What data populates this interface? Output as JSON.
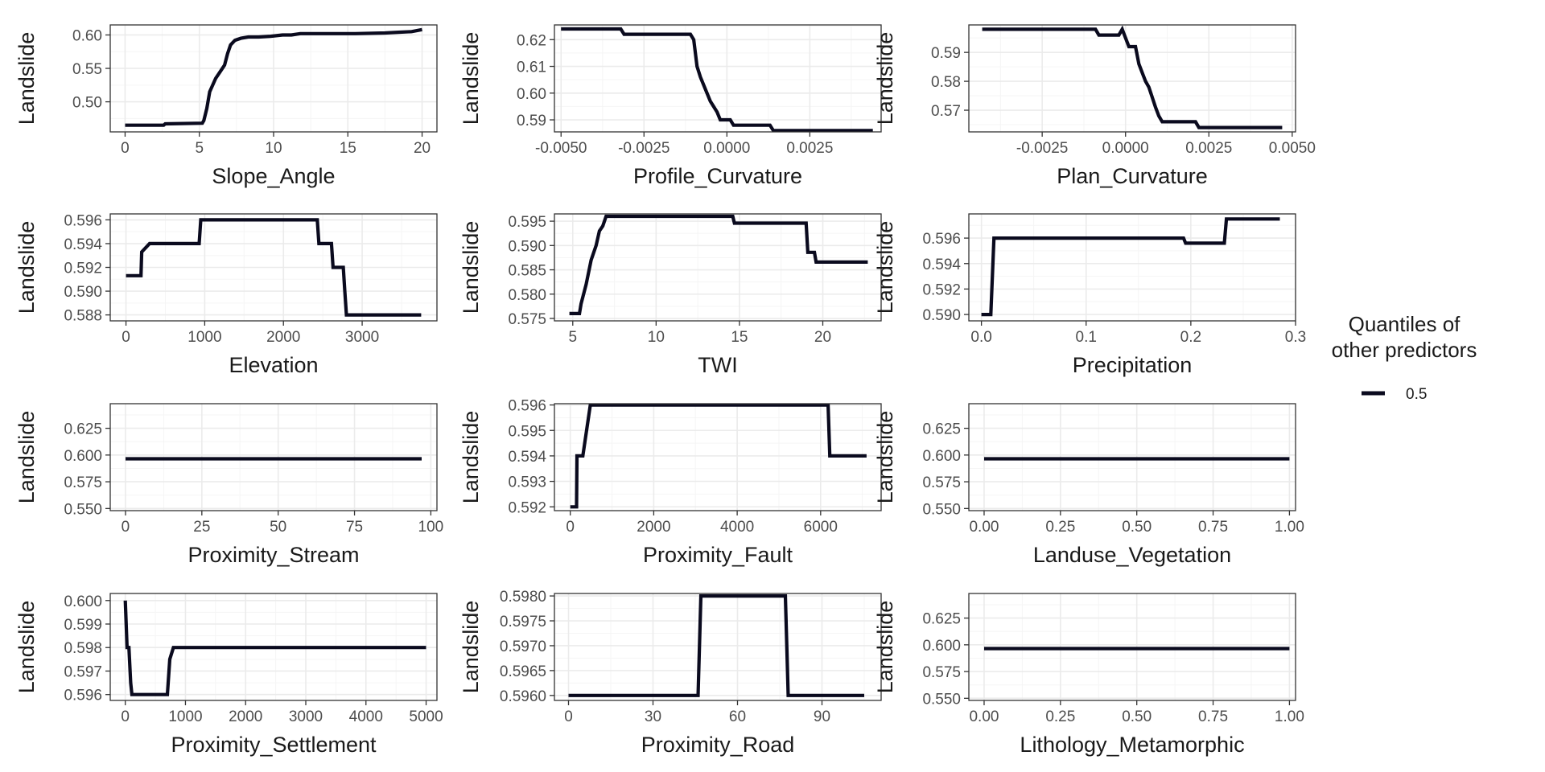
{
  "legend": {
    "title_lines": [
      "Quantiles of",
      "other predictors"
    ],
    "entries": [
      {
        "label": "0.5",
        "color": "#0a0a1e"
      }
    ]
  },
  "colors": {
    "line": "#0a0a1e",
    "grid_major": "#ebebeb",
    "grid_minor": "#f5f5f5",
    "border": "#333333",
    "tick_text": "#4d4d4d"
  },
  "chart_data": [
    {
      "type": "line",
      "xlabel": "Slope_Angle",
      "ylabel": "Landslide",
      "xlim": [
        -1,
        21
      ],
      "ylim": [
        0.455,
        0.615
      ],
      "xticks": [
        0,
        5,
        10,
        15,
        20
      ],
      "xtick_labels": [
        "0",
        "5",
        "10",
        "15",
        "20"
      ],
      "yticks": [
        0.5,
        0.55,
        0.6
      ],
      "ytick_labels": [
        "0.50",
        "0.55",
        "0.60"
      ],
      "series": [
        {
          "name": "0.5",
          "x": [
            0,
            2.6,
            2.7,
            5.2,
            5.3,
            5.5,
            5.7,
            5.9,
            6.1,
            6.4,
            6.7,
            6.9,
            7.1,
            7.4,
            7.8,
            8.3,
            9.0,
            9.8,
            10.6,
            11.2,
            11.8,
            15.5,
            17.5,
            18.4,
            19.3,
            20
          ],
          "y": [
            0.465,
            0.465,
            0.467,
            0.468,
            0.472,
            0.49,
            0.515,
            0.525,
            0.535,
            0.545,
            0.555,
            0.572,
            0.585,
            0.592,
            0.595,
            0.597,
            0.597,
            0.598,
            0.6,
            0.6,
            0.602,
            0.602,
            0.603,
            0.604,
            0.605,
            0.608
          ]
        }
      ]
    },
    {
      "type": "line",
      "xlabel": "Profile_Curvature",
      "ylabel": "Landslide",
      "xlim": [
        -0.0052,
        0.00465
      ],
      "ylim": [
        0.5855,
        0.6255
      ],
      "xticks": [
        -0.005,
        -0.0025,
        0,
        0.0025
      ],
      "xtick_labels": [
        "-0.0050",
        "-0.0025",
        "0.0000",
        "0.0025"
      ],
      "yticks": [
        0.59,
        0.6,
        0.61,
        0.62
      ],
      "ytick_labels": [
        "0.59",
        "0.60",
        "0.61",
        "0.62"
      ],
      "series": [
        {
          "name": "0.5",
          "x": [
            -0.005,
            -0.0032,
            -0.0031,
            -0.0011,
            -0.001,
            -0.0009,
            -0.0008,
            -0.0007,
            -0.0006,
            -0.0005,
            -0.0004,
            -0.0003,
            -0.0002,
            0.0001,
            0.0002,
            0.0013,
            0.0014,
            0.0044
          ],
          "y": [
            0.624,
            0.624,
            0.622,
            0.622,
            0.62,
            0.61,
            0.606,
            0.603,
            0.6,
            0.597,
            0.595,
            0.593,
            0.59,
            0.59,
            0.588,
            0.588,
            0.586,
            0.586
          ]
        }
      ]
    },
    {
      "type": "line",
      "xlabel": "Plan_Curvature",
      "ylabel": "Landslide",
      "xlim": [
        -0.0047,
        0.0051
      ],
      "ylim": [
        0.5625,
        0.5995
      ],
      "xticks": [
        -0.0025,
        0,
        0.0025,
        0.005
      ],
      "xtick_labels": [
        "-0.0025",
        "0.0000",
        "0.0025",
        "0.0050"
      ],
      "yticks": [
        0.57,
        0.58,
        0.59
      ],
      "ytick_labels": [
        "0.57",
        "0.58",
        "0.59"
      ],
      "series": [
        {
          "name": "0.5",
          "x": [
            -0.0043,
            -0.0009,
            -0.0008,
            -0.0002,
            -0.0001,
            0.0001,
            0.0003,
            0.0004,
            0.0005,
            0.0006,
            0.0007,
            0.0009,
            0.001,
            0.0011,
            0.0021,
            0.0022,
            0.0047
          ],
          "y": [
            0.598,
            0.598,
            0.596,
            0.596,
            0.598,
            0.592,
            0.592,
            0.586,
            0.583,
            0.58,
            0.578,
            0.571,
            0.568,
            0.566,
            0.566,
            0.564,
            0.564
          ]
        }
      ]
    },
    {
      "type": "line",
      "xlabel": "Elevation",
      "ylabel": "Landslide",
      "xlim": [
        -200,
        3950
      ],
      "ylim": [
        0.5875,
        0.5965
      ],
      "xticks": [
        0,
        1000,
        2000,
        3000
      ],
      "xtick_labels": [
        "0",
        "1000",
        "2000",
        "3000"
      ],
      "yticks": [
        0.588,
        0.59,
        0.592,
        0.594,
        0.596
      ],
      "ytick_labels": [
        "0.588",
        "0.590",
        "0.592",
        "0.594",
        "0.596"
      ],
      "series": [
        {
          "name": "0.5",
          "x": [
            0,
            190,
            200,
            300,
            930,
            950,
            2430,
            2450,
            2610,
            2630,
            2760,
            2780,
            2800,
            3750
          ],
          "y": [
            0.5913,
            0.5913,
            0.5933,
            0.594,
            0.594,
            0.596,
            0.596,
            0.594,
            0.594,
            0.592,
            0.592,
            0.59,
            0.588,
            0.588
          ]
        }
      ]
    },
    {
      "type": "line",
      "xlabel": "TWI",
      "ylabel": "Landslide",
      "xlim": [
        3.9,
        23.5
      ],
      "ylim": [
        0.5745,
        0.5965
      ],
      "xticks": [
        5,
        10,
        15,
        20
      ],
      "xtick_labels": [
        "5",
        "10",
        "15",
        "20"
      ],
      "yticks": [
        0.575,
        0.58,
        0.585,
        0.59,
        0.595
      ],
      "ytick_labels": [
        "0.575",
        "0.580",
        "0.585",
        "0.590",
        "0.595"
      ],
      "series": [
        {
          "name": "0.5",
          "x": [
            4.8,
            5.4,
            5.5,
            5.8,
            6.1,
            6.4,
            6.6,
            6.8,
            7.0,
            7.2,
            14.6,
            14.7,
            19.0,
            19.1,
            19.5,
            19.6,
            22.7
          ],
          "y": [
            0.576,
            0.576,
            0.578,
            0.582,
            0.587,
            0.59,
            0.593,
            0.594,
            0.596,
            0.596,
            0.596,
            0.5946,
            0.5946,
            0.5886,
            0.5886,
            0.5866,
            0.5866
          ]
        }
      ]
    },
    {
      "type": "line",
      "xlabel": "Precipitation",
      "ylabel": "Landslide",
      "xlim": [
        -0.012,
        0.3
      ],
      "ylim": [
        0.5895,
        0.5979
      ],
      "xticks": [
        0,
        0.1,
        0.2,
        0.3
      ],
      "xtick_labels": [
        "0.0",
        "0.1",
        "0.2",
        "0.3"
      ],
      "yticks": [
        0.59,
        0.592,
        0.594,
        0.596
      ],
      "ytick_labels": [
        "0.590",
        "0.592",
        "0.594",
        "0.596"
      ],
      "series": [
        {
          "name": "0.5",
          "x": [
            0,
            0.009,
            0.012,
            0.193,
            0.195,
            0.232,
            0.234,
            0.285
          ],
          "y": [
            0.59,
            0.59,
            0.596,
            0.596,
            0.5956,
            0.5956,
            0.5975,
            0.5975
          ]
        }
      ]
    },
    {
      "type": "line",
      "xlabel": "Proximity_Stream",
      "ylabel": "Landslide",
      "xlim": [
        -5,
        102
      ],
      "ylim": [
        0.548,
        0.648
      ],
      "xticks": [
        0,
        25,
        50,
        75,
        100
      ],
      "xtick_labels": [
        "0",
        "25",
        "50",
        "75",
        "100"
      ],
      "yticks": [
        0.55,
        0.575,
        0.6,
        0.625
      ],
      "ytick_labels": [
        "0.550",
        "0.575",
        "0.600",
        "0.625"
      ],
      "series": [
        {
          "name": "0.5",
          "x": [
            0,
            97
          ],
          "y": [
            0.5965,
            0.5965
          ]
        }
      ]
    },
    {
      "type": "line",
      "xlabel": "Proximity_Fault",
      "ylabel": "Landslide",
      "xlim": [
        -380,
        7450
      ],
      "ylim": [
        0.59185,
        0.59605
      ],
      "xticks": [
        0,
        2000,
        4000,
        6000
      ],
      "xtick_labels": [
        "0",
        "2000",
        "4000",
        "6000"
      ],
      "yticks": [
        0.592,
        0.593,
        0.594,
        0.595,
        0.596
      ],
      "ytick_labels": [
        "0.592",
        "0.593",
        "0.594",
        "0.595",
        "0.596"
      ],
      "series": [
        {
          "name": "0.5",
          "x": [
            0,
            150,
            160,
            300,
            480,
            6180,
            6220,
            7100
          ],
          "y": [
            0.592,
            0.592,
            0.594,
            0.594,
            0.596,
            0.596,
            0.594,
            0.594
          ]
        }
      ]
    },
    {
      "type": "line",
      "xlabel": "Landuse_Vegetation",
      "ylabel": "Landslide",
      "xlim": [
        -0.05,
        1.02
      ],
      "ylim": [
        0.548,
        0.648
      ],
      "xticks": [
        0,
        0.25,
        0.5,
        0.75,
        1.0
      ],
      "xtick_labels": [
        "0.00",
        "0.25",
        "0.50",
        "0.75",
        "1.00"
      ],
      "yticks": [
        0.55,
        0.575,
        0.6,
        0.625
      ],
      "ytick_labels": [
        "0.550",
        "0.575",
        "0.600",
        "0.625"
      ],
      "series": [
        {
          "name": "0.5",
          "x": [
            0,
            1
          ],
          "y": [
            0.5965,
            0.5965
          ]
        }
      ]
    },
    {
      "type": "line",
      "xlabel": "Proximity_Settlement",
      "ylabel": "Landslide",
      "xlim": [
        -250,
        5180
      ],
      "ylim": [
        0.59575,
        0.6003
      ],
      "xticks": [
        0,
        1000,
        2000,
        3000,
        4000,
        5000
      ],
      "xtick_labels": [
        "0",
        "1000",
        "2000",
        "3000",
        "4000",
        "5000"
      ],
      "yticks": [
        0.596,
        0.597,
        0.598,
        0.599,
        0.6
      ],
      "ytick_labels": [
        "0.596",
        "0.597",
        "0.598",
        "0.599",
        "0.600"
      ],
      "series": [
        {
          "name": "0.5",
          "x": [
            0,
            30,
            60,
            90,
            110,
            700,
            740,
            800,
            5000
          ],
          "y": [
            0.6,
            0.598,
            0.598,
            0.5965,
            0.596,
            0.596,
            0.5975,
            0.598,
            0.598
          ]
        }
      ]
    },
    {
      "type": "line",
      "xlabel": "Proximity_Road",
      "ylabel": "Landslide",
      "xlim": [
        -5,
        111
      ],
      "ylim": [
        0.5959,
        0.59805
      ],
      "xticks": [
        0,
        30,
        60,
        90
      ],
      "xtick_labels": [
        "0",
        "30",
        "60",
        "90"
      ],
      "yticks": [
        0.596,
        0.5965,
        0.597,
        0.5975,
        0.598
      ],
      "ytick_labels": [
        "0.5960",
        "0.5965",
        "0.5970",
        "0.5975",
        "0.5980"
      ],
      "series": [
        {
          "name": "0.5",
          "x": [
            0,
            46,
            47,
            77,
            78,
            105
          ],
          "y": [
            0.596,
            0.596,
            0.598,
            0.598,
            0.596,
            0.596
          ]
        }
      ]
    },
    {
      "type": "line",
      "xlabel": "Lithology_Metamorphic",
      "ylabel": "Landslide",
      "xlim": [
        -0.05,
        1.02
      ],
      "ylim": [
        0.548,
        0.648
      ],
      "xticks": [
        0,
        0.25,
        0.5,
        0.75,
        1.0
      ],
      "xtick_labels": [
        "0.00",
        "0.25",
        "0.50",
        "0.75",
        "1.00"
      ],
      "yticks": [
        0.55,
        0.575,
        0.6,
        0.625
      ],
      "ytick_labels": [
        "0.550",
        "0.575",
        "0.600",
        "0.625"
      ],
      "series": [
        {
          "name": "0.5",
          "x": [
            0,
            1
          ],
          "y": [
            0.5965,
            0.5965
          ]
        }
      ]
    }
  ]
}
